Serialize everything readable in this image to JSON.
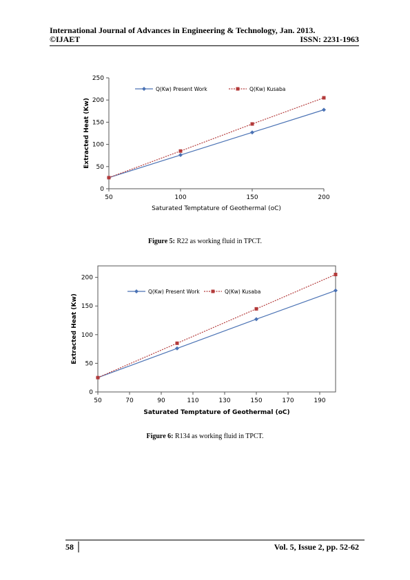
{
  "header": {
    "journal_title": "International Journal of Advances in Engineering & Technology, Jan. 2013.",
    "copyright": "©IJAET",
    "issn": "ISSN: 2231-1963"
  },
  "figures": [
    {
      "caption_label": "Figure 5:",
      "caption_text": " R22 as working fluid in TPCT."
    },
    {
      "caption_label": "Figure 6:",
      "caption_text": " R134 as working fluid in TPCT."
    }
  ],
  "chart_data": [
    {
      "type": "line",
      "xlabel": "Saturated Temptature of Geothermal (oC)",
      "ylabel": "Extracted Heat (Kw)",
      "xlim": [
        50,
        200
      ],
      "ylim": [
        0,
        250
      ],
      "x_ticks": [
        50,
        100,
        150,
        200
      ],
      "y_ticks": [
        0,
        50,
        100,
        150,
        200,
        250
      ],
      "grid": false,
      "legend_position": "top",
      "series": [
        {
          "name": "Q(Kw) Present Work",
          "x": [
            50,
            100,
            150,
            200
          ],
          "values": [
            25,
            76,
            127,
            178
          ],
          "color": "#4a72b4",
          "style": "solid",
          "marker": "diamond"
        },
        {
          "name": "Q(Kw) Kusaba",
          "x": [
            50,
            100,
            150,
            200
          ],
          "values": [
            25,
            85,
            146,
            205
          ],
          "color": "#b33a3a",
          "style": "dotted",
          "marker": "square"
        }
      ]
    },
    {
      "type": "line",
      "xlabel": "Saturated Temptature of Geothermal (oC)",
      "ylabel": "Extracted Heat (Kw)",
      "xlim": [
        50,
        200
      ],
      "ylim": [
        0,
        220
      ],
      "x_ticks": [
        50,
        70,
        90,
        110,
        130,
        150,
        170,
        190
      ],
      "y_ticks": [
        0,
        50,
        100,
        150,
        200
      ],
      "grid": false,
      "legend_position": "top",
      "series": [
        {
          "name": "Q(Kw) Present Work",
          "x": [
            50,
            100,
            150,
            200
          ],
          "values": [
            25,
            76,
            127,
            177
          ],
          "color": "#4a72b4",
          "style": "solid",
          "marker": "diamond"
        },
        {
          "name": "Q(Kw) Kusaba",
          "x": [
            50,
            100,
            150,
            200
          ],
          "values": [
            25,
            85,
            145,
            205
          ],
          "color": "#b33a3a",
          "style": "dotted",
          "marker": "square"
        }
      ]
    }
  ],
  "footer": {
    "page_number": "58",
    "volume": "Vol. 5, Issue 2, pp. 52-62"
  }
}
